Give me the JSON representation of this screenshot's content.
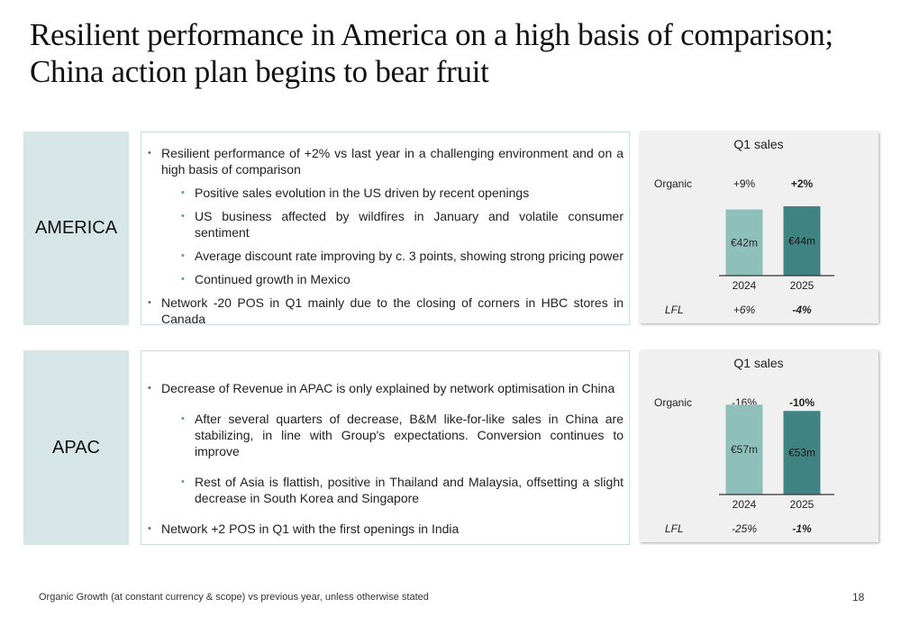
{
  "title": "Resilient performance in America on a high basis of comparison; China action plan begins to bear fruit",
  "colors": {
    "region_bg": "#d6e6e6",
    "bar_2024": "#8fbfbb",
    "bar_2025": "#3f8383"
  },
  "america": {
    "label": "AMERICA",
    "bullets": {
      "b1": "Resilient performance of +2% vs last year in a challenging environment and on a high basis of comparison",
      "s1": "Positive sales evolution in the US driven by recent openings",
      "s2": "US business affected by wildfires in January and volatile consumer sentiment",
      "s3": "Average discount rate improving by c. 3 points, showing strong pricing power",
      "s4": "Continued growth in Mexico",
      "b2": "Network -20 POS in Q1 mainly due to the closing of corners in HBC stores in Canada"
    }
  },
  "apac": {
    "label": "APAC",
    "bullets": {
      "b1": "Decrease of Revenue in APAC is only explained by network optimisation in China",
      "s1": "After several quarters of decrease, B&M like-for-like sales in China are stabilizing, in line with Group's expectations. Conversion continues to improve",
      "s2": "Rest of Asia is flattish, positive in Thailand and Malaysia, offsetting a slight decrease in South Korea and Singapore",
      "b2": "Network +2 POS in Q1 with the first openings in India"
    }
  },
  "chart_data": [
    {
      "type": "bar",
      "title": "Q1 sales",
      "categories": [
        "2024",
        "2025"
      ],
      "values": [
        42,
        44
      ],
      "value_labels": [
        "€42m",
        "€44m"
      ],
      "organic_label": "Organic",
      "organic": [
        "+9%",
        "+2%"
      ],
      "lfl_label": "LFL",
      "lfl": [
        "+6%",
        "-4%"
      ]
    },
    {
      "type": "bar",
      "title": "Q1 sales",
      "categories": [
        "2024",
        "2025"
      ],
      "values": [
        57,
        53
      ],
      "value_labels": [
        "€57m",
        "€53m"
      ],
      "organic_label": "Organic",
      "organic": [
        "-16%",
        "-10%"
      ],
      "lfl_label": "LFL",
      "lfl": [
        "-25%",
        "-1%"
      ]
    }
  ],
  "footnote": "Organic Growth (at constant currency & scope) vs previous year, unless otherwise stated",
  "page_number": "18"
}
